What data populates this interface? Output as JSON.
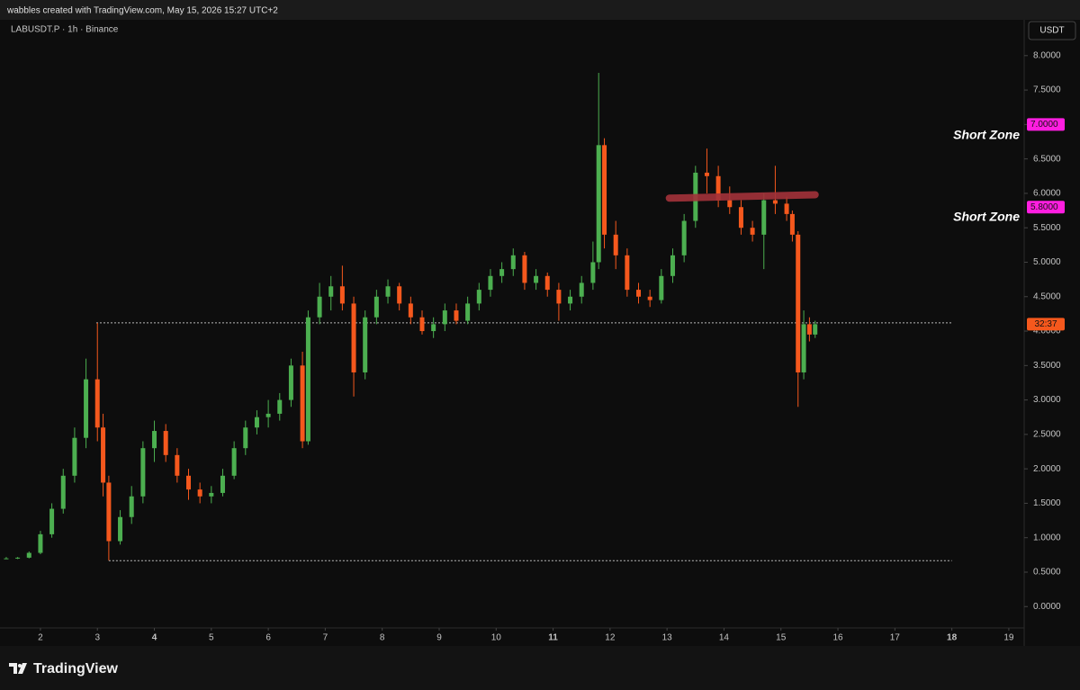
{
  "header": "wabbles created with TradingView.com, May 15, 2026 15:27 UTC+2",
  "brand": "TradingView",
  "chart_data": {
    "type": "candlestick",
    "title": "LABUSDT.P · 1h · Binance",
    "currency": "USDT",
    "up_color": "#4caf50",
    "down_color": "#f5581d",
    "x": [
      1.4,
      1.6,
      1.8,
      2.0,
      2.2,
      2.4,
      2.6,
      2.8,
      3.0,
      3.1,
      3.2,
      3.4,
      3.6,
      3.8,
      4.0,
      4.2,
      4.4,
      4.6,
      4.8,
      5.0,
      5.2,
      5.4,
      5.6,
      5.8,
      6.0,
      6.2,
      6.4,
      6.6,
      6.7,
      6.9,
      7.1,
      7.3,
      7.5,
      7.7,
      7.9,
      8.1,
      8.3,
      8.5,
      8.7,
      8.9,
      9.1,
      9.3,
      9.5,
      9.7,
      9.9,
      10.1,
      10.3,
      10.5,
      10.7,
      10.9,
      11.1,
      11.3,
      11.5,
      11.7,
      11.8,
      11.9,
      12.1,
      12.3,
      12.5,
      12.7,
      12.9,
      13.1,
      13.3,
      13.5,
      13.7,
      13.9,
      14.1,
      14.3,
      14.5,
      14.7,
      14.9,
      15.1,
      15.2,
      15.3,
      15.4,
      15.5,
      15.6
    ],
    "open": [
      0.7,
      0.7,
      0.71,
      0.78,
      1.05,
      1.42,
      1.9,
      2.45,
      3.3,
      2.6,
      1.8,
      0.95,
      1.3,
      1.6,
      2.3,
      2.55,
      2.2,
      1.9,
      1.7,
      1.6,
      1.65,
      1.9,
      2.3,
      2.6,
      2.75,
      2.8,
      3.0,
      3.5,
      2.4,
      4.2,
      4.5,
      4.65,
      4.4,
      3.4,
      4.2,
      4.5,
      4.65,
      4.4,
      4.2,
      4.0,
      4.1,
      4.3,
      4.15,
      4.4,
      4.6,
      4.8,
      4.9,
      5.1,
      4.7,
      4.8,
      4.6,
      4.4,
      4.5,
      4.7,
      5.0,
      6.7,
      5.4,
      5.1,
      4.6,
      4.5,
      4.45,
      4.8,
      5.1,
      5.6,
      6.3,
      6.25,
      5.9,
      5.8,
      5.5,
      5.4,
      5.9,
      5.85,
      5.7,
      5.4,
      3.4,
      4.1,
      3.95
    ],
    "high": [
      0.72,
      0.72,
      0.8,
      1.1,
      1.5,
      2.0,
      2.6,
      3.6,
      4.12,
      2.8,
      1.9,
      1.4,
      1.75,
      2.4,
      2.7,
      2.65,
      2.3,
      2.0,
      1.8,
      1.75,
      2.0,
      2.4,
      2.7,
      2.85,
      3.0,
      3.1,
      3.6,
      3.7,
      4.3,
      4.7,
      4.8,
      4.95,
      4.5,
      4.3,
      4.6,
      4.75,
      4.7,
      4.5,
      4.3,
      4.2,
      4.4,
      4.4,
      4.5,
      4.7,
      4.9,
      5.0,
      5.2,
      5.15,
      4.9,
      4.85,
      4.7,
      4.6,
      4.8,
      5.3,
      7.75,
      6.8,
      5.6,
      5.2,
      4.7,
      4.6,
      4.9,
      5.2,
      5.7,
      6.4,
      6.65,
      6.4,
      6.1,
      5.9,
      5.6,
      6.0,
      6.4,
      5.95,
      5.75,
      5.45,
      4.3,
      4.2,
      4.15
    ],
    "low": [
      0.69,
      0.69,
      0.7,
      0.76,
      1.0,
      1.35,
      1.8,
      2.3,
      2.4,
      1.6,
      0.67,
      0.9,
      1.2,
      1.5,
      2.1,
      2.1,
      1.8,
      1.55,
      1.5,
      1.5,
      1.6,
      1.85,
      2.2,
      2.5,
      2.6,
      2.7,
      2.9,
      2.3,
      2.35,
      4.1,
      4.3,
      4.3,
      3.05,
      3.3,
      4.1,
      4.4,
      4.3,
      4.1,
      3.95,
      3.9,
      4.0,
      4.1,
      4.1,
      4.3,
      4.5,
      4.7,
      4.8,
      4.6,
      4.6,
      4.5,
      4.15,
      4.3,
      4.4,
      4.6,
      4.9,
      5.2,
      4.9,
      4.5,
      4.4,
      4.35,
      4.4,
      4.7,
      5.0,
      5.5,
      6.0,
      5.8,
      5.7,
      5.4,
      5.3,
      4.9,
      5.7,
      5.6,
      5.3,
      2.9,
      3.3,
      3.85,
      3.9
    ],
    "close": [
      0.7,
      0.71,
      0.78,
      1.05,
      1.42,
      1.9,
      2.45,
      3.3,
      2.6,
      1.8,
      0.95,
      1.3,
      1.6,
      2.3,
      2.55,
      2.2,
      1.9,
      1.7,
      1.6,
      1.65,
      1.9,
      2.3,
      2.6,
      2.75,
      2.8,
      3.0,
      3.5,
      2.4,
      4.2,
      4.5,
      4.65,
      4.4,
      3.4,
      4.2,
      4.5,
      4.65,
      4.4,
      4.2,
      4.0,
      4.1,
      4.3,
      4.15,
      4.4,
      4.6,
      4.8,
      4.9,
      5.1,
      4.7,
      4.8,
      4.6,
      4.4,
      4.5,
      4.7,
      5.0,
      6.7,
      5.4,
      5.1,
      4.6,
      4.5,
      4.45,
      4.8,
      5.1,
      5.6,
      6.3,
      6.25,
      5.9,
      5.8,
      5.5,
      5.4,
      5.9,
      5.85,
      5.7,
      5.4,
      3.4,
      4.1,
      3.95,
      4.1
    ],
    "xlim": [
      1.29,
      19.27
    ],
    "ylim": [
      -0.31,
      8.52
    ],
    "xticks": [
      2,
      3,
      4,
      5,
      6,
      7,
      8,
      9,
      10,
      11,
      12,
      13,
      14,
      15,
      16,
      17,
      18,
      19
    ],
    "bold_xticks": [
      4,
      11,
      18
    ],
    "yticks": [
      {
        "value": 0,
        "label": "0.0000"
      },
      {
        "value": 0.5,
        "label": "0.5000"
      },
      {
        "value": 1,
        "label": "1.0000"
      },
      {
        "value": 1.5,
        "label": "1.5000"
      },
      {
        "value": 2,
        "label": "2.0000"
      },
      {
        "value": 2.5,
        "label": "2.5000"
      },
      {
        "value": 3,
        "label": "3.0000"
      },
      {
        "value": 3.5,
        "label": "3.5000"
      },
      {
        "value": 4,
        "label": "4.0000"
      },
      {
        "value": 4.5,
        "label": "4.5000"
      },
      {
        "value": 5,
        "label": "5.0000"
      },
      {
        "value": 5.5,
        "label": "5.5000"
      },
      {
        "value": 6,
        "label": "6.0000"
      },
      {
        "value": 6.5,
        "label": "6.5000"
      },
      {
        "value": 7,
        "label": "7.0000"
      },
      {
        "value": 7.5,
        "label": "7.5000"
      },
      {
        "value": 8,
        "label": "8.0000"
      }
    ],
    "price_labels": [
      {
        "value": 7,
        "label": "7.0000",
        "color": "#ff1ee0"
      },
      {
        "value": 5.8,
        "label": "5.8000",
        "color": "#ff1ee0"
      }
    ],
    "countdown": {
      "label": "32:37",
      "color": "#f5581d"
    },
    "annotations": [
      {
        "text": "Short Zone",
        "y": 6.84
      },
      {
        "text": "Short Zone",
        "y": 5.65
      }
    ],
    "hlines": [
      {
        "y": 4.12,
        "x": [
          2.98,
          18.0
        ]
      },
      {
        "y": 0.667,
        "x": [
          3.2,
          18.0
        ]
      }
    ],
    "trendline": {
      "x": [
        13.04,
        15.6
      ],
      "y": [
        5.93,
        5.98
      ],
      "color": "#a3323a"
    }
  }
}
